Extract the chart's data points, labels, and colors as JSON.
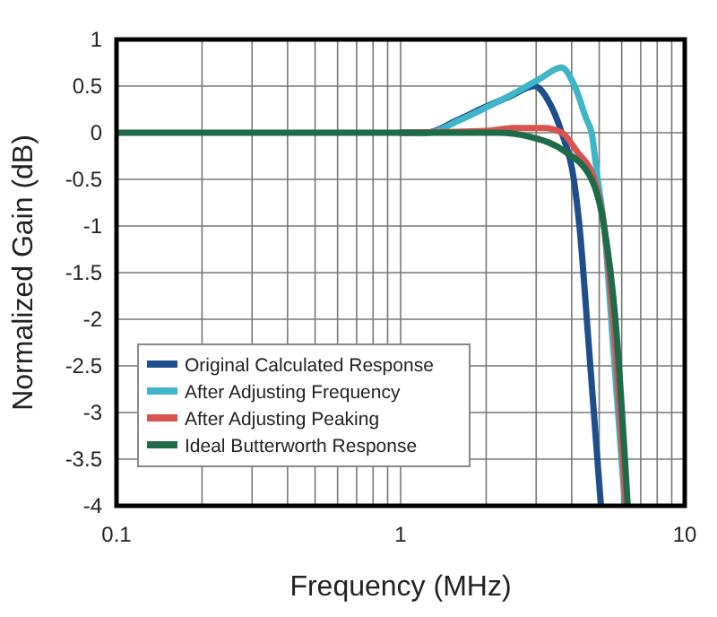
{
  "chart_data": {
    "type": "line",
    "xlabel": "Frequency (MHz)",
    "ylabel": "Normalized Gain (dB)",
    "log": "x",
    "grid": true,
    "legend": "bottom left",
    "line_style": "solid",
    "xlim": [
      0.1,
      10
    ],
    "xticks": [
      0.1,
      1,
      10
    ],
    "ylim": [
      -4,
      1
    ],
    "yticks": [
      1,
      0.5,
      0,
      -0.5,
      -1,
      -1.5,
      -2,
      -2.5,
      -3,
      -3.5,
      -4
    ],
    "series": [
      {
        "name": "Original Calculated Response",
        "color": "#1f4e8c",
        "x": [
          1,
          1.23,
          1.57,
          1.9,
          2.43,
          2.96,
          3.3,
          3.69,
          4.07,
          4.26,
          4.6,
          5.07
        ],
        "values": [
          0,
          0,
          0.13,
          0.25,
          0.39,
          0.5,
          0.35,
          0,
          -0.5,
          -1,
          -2.3,
          -4
        ]
      },
      {
        "name": "After Adjusting Frequency",
        "color": "#3fb5c8",
        "x": [
          1,
          1.25,
          1.6,
          2,
          2.5,
          3.1,
          3.68,
          4.1,
          4.5,
          4.7,
          4.94,
          5.2,
          5.6,
          6.16
        ],
        "values": [
          0,
          0,
          0.13,
          0.27,
          0.42,
          0.58,
          0.7,
          0.5,
          0.15,
          0,
          -0.5,
          -1,
          -2.3,
          -4
        ]
      },
      {
        "name": "After Adjusting Peaking",
        "color": "#d9534f",
        "x": [
          1,
          2,
          2.5,
          3.2,
          3.7,
          4.17,
          4.8,
          5.2,
          5.6,
          6.2
        ],
        "values": [
          0,
          0.02,
          0.05,
          0.05,
          0,
          -0.2,
          -0.5,
          -1,
          -2,
          -4
        ]
      },
      {
        "name": "Ideal Butterworth Response",
        "color": "#1e6b4a",
        "x": [
          0.1,
          0.5,
          1,
          2.2,
          2.9,
          3.78,
          4.7,
          5.2,
          5.7,
          6.3
        ],
        "values": [
          0,
          0,
          0,
          0,
          -0.05,
          -0.2,
          -0.5,
          -1,
          -2,
          -4
        ]
      }
    ]
  }
}
